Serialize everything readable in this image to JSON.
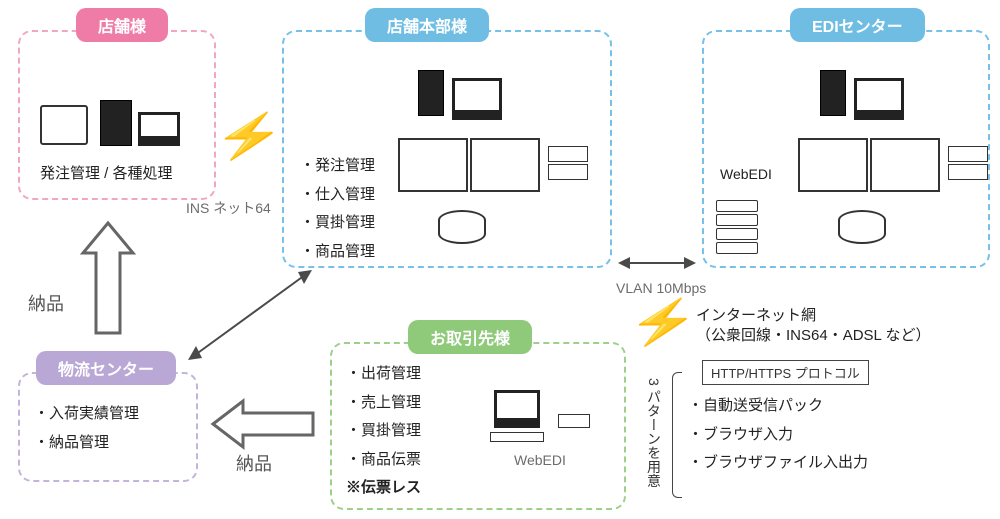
{
  "colors": {
    "pink": "#ef7ba7",
    "blue": "#6fbde3",
    "green": "#8fc97a",
    "purple": "#b9a7d6",
    "blue_border": "#77c0e8",
    "pink_border": "#f1a7c2",
    "green_border": "#9fd08b",
    "purple_border": "#c3b4dc",
    "gray_text": "#6c6c6c",
    "arrow_gray": "#666666"
  },
  "nodes": {
    "store": {
      "title": "店舗様",
      "caption": "発注管理 / 各種処理"
    },
    "hq": {
      "title": "店舗本部様",
      "items": [
        "発注管理",
        "仕入管理",
        "買掛管理",
        "商品管理"
      ]
    },
    "edi": {
      "title": "EDIセンター",
      "caption": "WebEDI"
    },
    "logi": {
      "title": "物流センター",
      "items": [
        "入荷実績管理",
        "納品管理"
      ]
    },
    "partner": {
      "title": "お取引先様",
      "caption": "WebEDI",
      "items": [
        "出荷管理",
        "売上管理",
        "買掛管理",
        "商品伝票"
      ],
      "note": "※伝票レス"
    }
  },
  "links": {
    "ins64": "INS ネット64",
    "vlan": "VLAN 10Mbps",
    "delivery": "納品",
    "internet1": "インターネット網",
    "internet2": "（公衆回線・INS64・ADSL など）"
  },
  "protocol": {
    "header": "HTTP/HTTPS プロトコル",
    "items": [
      "自動送受信パック",
      "ブラウザ入力",
      "ブラウザファイル入出力"
    ],
    "side": "3 パターンを用意"
  }
}
